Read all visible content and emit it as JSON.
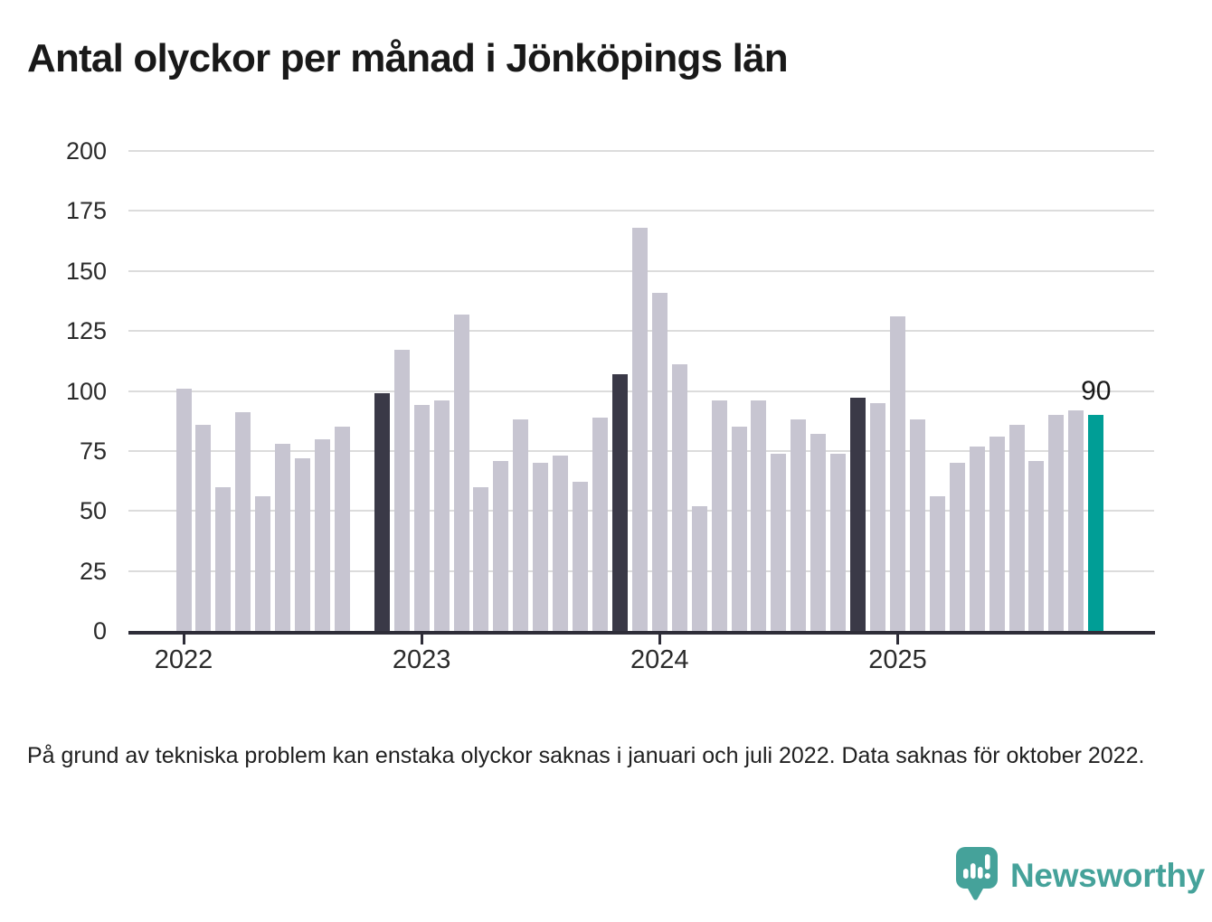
{
  "figure": {
    "title": "Antal olyckor per månad i Jönköpings län",
    "footnote": "På grund av tekniska problem kan enstaka olyckor saknas i januari och juli 2022. Data saknas för oktober 2022."
  },
  "branding": {
    "logo_text": "Newsworthy",
    "logo_icon": "newsworthy-speech-bubble-chart-icon",
    "logo_color": "#45a29a"
  },
  "colors": {
    "bar_default": "#c7c5d1",
    "bar_reference_dark": "#3a3947",
    "bar_highlight": "#009e96",
    "axis_line": "#2e2d38",
    "gridline": "#dcdcdc",
    "text": "#191919"
  },
  "chart_data": {
    "type": "bar",
    "title": "Antal olyckor per månad i Jönköpings län",
    "xlabel": "",
    "ylabel": "",
    "ylim": [
      0,
      200
    ],
    "yticks": [
      0,
      25,
      50,
      75,
      100,
      125,
      150,
      175,
      200
    ],
    "grid": true,
    "legend_position": "none",
    "x_year_ticks": [
      "2022",
      "2023",
      "2024",
      "2025"
    ],
    "missing_months": [
      "2022-10"
    ],
    "highlight": {
      "month": "2025-11",
      "label": "90"
    },
    "series": [
      {
        "month": "2022-01",
        "value": 101,
        "style": "default"
      },
      {
        "month": "2022-02",
        "value": 86,
        "style": "default"
      },
      {
        "month": "2022-03",
        "value": 60,
        "style": "default"
      },
      {
        "month": "2022-04",
        "value": 91,
        "style": "default"
      },
      {
        "month": "2022-05",
        "value": 56,
        "style": "default"
      },
      {
        "month": "2022-06",
        "value": 78,
        "style": "default"
      },
      {
        "month": "2022-07",
        "value": 72,
        "style": "default"
      },
      {
        "month": "2022-08",
        "value": 80,
        "style": "default"
      },
      {
        "month": "2022-09",
        "value": 85,
        "style": "default"
      },
      {
        "month": "2022-11",
        "value": 99,
        "style": "reference"
      },
      {
        "month": "2022-12",
        "value": 117,
        "style": "default"
      },
      {
        "month": "2023-01",
        "value": 94,
        "style": "default"
      },
      {
        "month": "2023-02",
        "value": 96,
        "style": "default"
      },
      {
        "month": "2023-03",
        "value": 132,
        "style": "default"
      },
      {
        "month": "2023-04",
        "value": 60,
        "style": "default"
      },
      {
        "month": "2023-05",
        "value": 71,
        "style": "default"
      },
      {
        "month": "2023-06",
        "value": 88,
        "style": "default"
      },
      {
        "month": "2023-07",
        "value": 70,
        "style": "default"
      },
      {
        "month": "2023-08",
        "value": 73,
        "style": "default"
      },
      {
        "month": "2023-09",
        "value": 62,
        "style": "default"
      },
      {
        "month": "2023-10",
        "value": 89,
        "style": "default"
      },
      {
        "month": "2023-11",
        "value": 107,
        "style": "reference"
      },
      {
        "month": "2023-12",
        "value": 168,
        "style": "default"
      },
      {
        "month": "2024-01",
        "value": 141,
        "style": "default"
      },
      {
        "month": "2024-02",
        "value": 111,
        "style": "default"
      },
      {
        "month": "2024-03",
        "value": 52,
        "style": "default"
      },
      {
        "month": "2024-04",
        "value": 96,
        "style": "default"
      },
      {
        "month": "2024-05",
        "value": 85,
        "style": "default"
      },
      {
        "month": "2024-06",
        "value": 96,
        "style": "default"
      },
      {
        "month": "2024-07",
        "value": 74,
        "style": "default"
      },
      {
        "month": "2024-08",
        "value": 88,
        "style": "default"
      },
      {
        "month": "2024-09",
        "value": 82,
        "style": "default"
      },
      {
        "month": "2024-10",
        "value": 74,
        "style": "default"
      },
      {
        "month": "2024-11",
        "value": 97,
        "style": "reference"
      },
      {
        "month": "2024-12",
        "value": 95,
        "style": "default"
      },
      {
        "month": "2025-01",
        "value": 131,
        "style": "default"
      },
      {
        "month": "2025-02",
        "value": 88,
        "style": "default"
      },
      {
        "month": "2025-03",
        "value": 56,
        "style": "default"
      },
      {
        "month": "2025-04",
        "value": 70,
        "style": "default"
      },
      {
        "month": "2025-05",
        "value": 77,
        "style": "default"
      },
      {
        "month": "2025-06",
        "value": 81,
        "style": "default"
      },
      {
        "month": "2025-07",
        "value": 86,
        "style": "default"
      },
      {
        "month": "2025-08",
        "value": 71,
        "style": "default"
      },
      {
        "month": "2025-09",
        "value": 90,
        "style": "default"
      },
      {
        "month": "2025-10",
        "value": 92,
        "style": "default"
      },
      {
        "month": "2025-11",
        "value": 90,
        "style": "highlight"
      }
    ]
  }
}
